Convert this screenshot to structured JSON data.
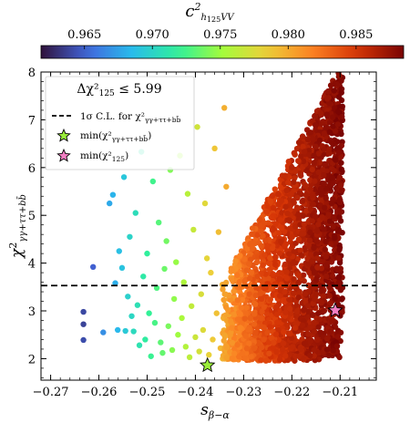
{
  "chart_data": {
    "type": "scatter",
    "title": "",
    "xlabel": "s_{β−α}",
    "ylabel": "χ²_{γγ+ττ+bb̄}",
    "xlim": [
      -0.272,
      -0.2025
    ],
    "ylim": [
      1.55,
      8.0
    ],
    "xticks": [
      -0.27,
      -0.26,
      -0.25,
      -0.24,
      -0.23,
      -0.22,
      -0.21
    ],
    "xtick_labels": [
      "−0.27",
      "−0.26",
      "−0.25",
      "−0.24",
      "−0.23",
      "−0.22",
      "−0.21"
    ],
    "yticks": [
      2,
      3,
      4,
      5,
      6,
      7,
      8
    ],
    "ytick_labels": [
      "2",
      "3",
      "4",
      "5",
      "6",
      "7",
      "8"
    ],
    "grid": false,
    "colorbar": {
      "label": "c²_{h125VV}",
      "range": [
        0.9618,
        0.9885
      ],
      "ticks": [
        0.965,
        0.97,
        0.975,
        0.98,
        0.985
      ],
      "tick_labels": [
        "0.965",
        "0.970",
        "0.975",
        "0.980",
        "0.985"
      ],
      "colormap": "turbo",
      "position": "top"
    },
    "legend": {
      "placement": "top-left",
      "title": "Δχ²_{125} ≤ 5.99",
      "entries": [
        {
          "label": "1σ C.L. for χ²_{γγ+ττ+bb̄}",
          "marker": "dashed-line"
        },
        {
          "label": "min(χ²_{γγ+ττ+bb̄})",
          "marker": "star",
          "color": "#9aee3a"
        },
        {
          "label": "min(χ²_{125})",
          "marker": "star",
          "color": "#f27fc3"
        }
      ]
    },
    "horizontal_line": {
      "y": 3.53,
      "style": "dashed",
      "color": "#000000"
    },
    "special_points": [
      {
        "name": "min(χ²_{γγ+ττ+bb̄})",
        "x": -0.2375,
        "y": 1.86,
        "marker": "star",
        "color": "#9aee3a"
      },
      {
        "name": "min(χ²_{125})",
        "x": -0.211,
        "y": 3.01,
        "marker": "star",
        "color": "#f27fc3"
      }
    ],
    "series": [
      {
        "marker": "circle",
        "x": [
          -0.2632,
          -0.2632,
          -0.2632,
          -0.2612,
          -0.2591,
          -0.2578,
          -0.2571,
          -0.2566,
          -0.2561,
          -0.2558,
          -0.2552,
          -0.2548,
          -0.2545,
          -0.254,
          -0.2536,
          -0.2532,
          -0.2528,
          -0.2524,
          -0.252,
          -0.2516,
          -0.2512,
          -0.2508,
          -0.2504,
          -0.25,
          -0.2496,
          -0.2492,
          -0.2488,
          -0.2484,
          -0.248,
          -0.2476,
          -0.2472,
          -0.2468,
          -0.2464,
          -0.246,
          -0.2456,
          -0.2452,
          -0.2448,
          -0.2444,
          -0.244,
          -0.2436,
          -0.2432,
          -0.2428,
          -0.2424,
          -0.242,
          -0.2416,
          -0.2412,
          -0.2408,
          -0.2404,
          -0.24,
          -0.2396,
          -0.2392,
          -0.2388,
          -0.2384,
          -0.238,
          -0.2376,
          -0.2372,
          -0.2368,
          -0.2364,
          -0.236,
          -0.2356,
          -0.2352,
          -0.2348,
          -0.2344,
          -0.234,
          -0.2336,
          -0.2332
        ],
        "y": [
          2.98,
          2.72,
          2.39,
          3.92,
          2.55,
          5.25,
          5.43,
          3.58,
          2.6,
          4.25,
          3.9,
          5.8,
          2.58,
          3.3,
          4.55,
          2.89,
          2.57,
          5.05,
          3.12,
          2.28,
          6.33,
          3.72,
          2.4,
          4.2,
          2.95,
          2.05,
          5.71,
          2.75,
          3.48,
          4.85,
          2.34,
          2.12,
          3.88,
          4.46,
          2.68,
          5.95,
          2.18,
          3.25,
          4.02,
          2.5,
          6.25,
          2.85,
          3.6,
          2.25,
          5.45,
          2.03,
          3.1,
          4.7,
          2.45,
          6.85,
          2.15,
          3.35,
          2.6,
          5.25,
          4.1,
          2.08,
          3.8,
          2.4,
          6.4,
          2.95,
          4.65,
          2.22,
          3.55,
          7.25,
          5.6,
          2.7
        ],
        "c": [
          0.964,
          0.9638,
          0.9642,
          0.965,
          0.9668,
          0.9678,
          0.9682,
          0.968,
          0.9684,
          0.9688,
          0.969,
          0.9692,
          0.9694,
          0.9698,
          0.97,
          0.9702,
          0.9704,
          0.9706,
          0.9708,
          0.971,
          0.9712,
          0.9714,
          0.9716,
          0.9718,
          0.972,
          0.9722,
          0.9724,
          0.9726,
          0.9728,
          0.973,
          0.9732,
          0.9734,
          0.9736,
          0.9738,
          0.974,
          0.9742,
          0.9744,
          0.9746,
          0.9748,
          0.975,
          0.9752,
          0.9754,
          0.9756,
          0.9758,
          0.976,
          0.9762,
          0.9764,
          0.9766,
          0.9768,
          0.977,
          0.9772,
          0.9774,
          0.9776,
          0.9778,
          0.978,
          0.9782,
          0.9784,
          0.9786,
          0.9788,
          0.979,
          0.9792,
          0.9794,
          0.9796,
          0.9798,
          0.98,
          0.9802
        ]
      }
    ],
    "dense_cloud": {
      "description_range_x": [
        -0.2345,
        -0.2095
      ],
      "description_range_y": [
        1.95,
        8.0
      ],
      "x_anchor": [
        -0.2345,
        -0.23,
        -0.225,
        -0.22,
        -0.215,
        -0.2095
      ],
      "c_anchor": [
        0.98,
        0.9825,
        0.9845,
        0.986,
        0.9872,
        0.9882
      ],
      "count": 2600
    }
  }
}
